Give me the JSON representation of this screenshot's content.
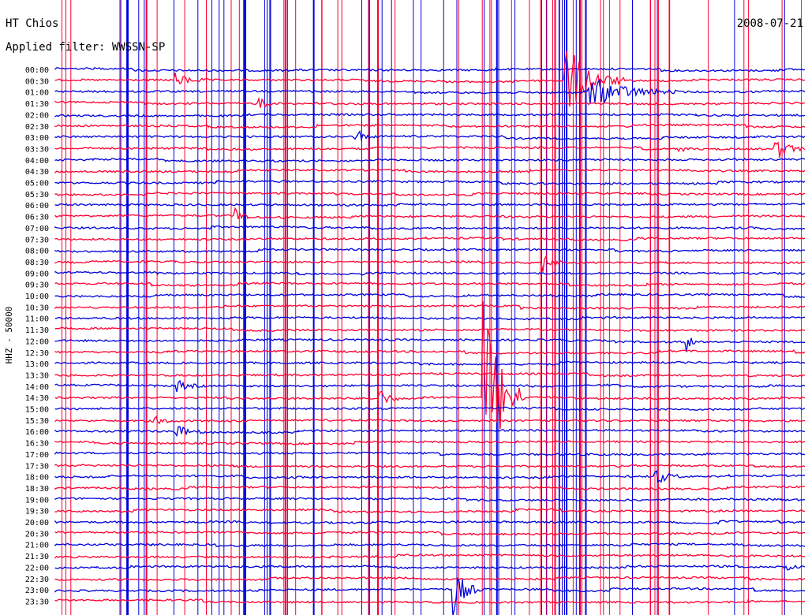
{
  "header": {
    "station": "HT Chios",
    "date": "2008-07-21",
    "filter": "Applied filter: WWSSN-SP"
  },
  "chart_data": {
    "type": "helicorder",
    "ylabel": "HHZ - 50000",
    "row_labels": [
      "00:00",
      "00:30",
      "01:00",
      "01:30",
      "02:00",
      "02:30",
      "03:00",
      "03:30",
      "04:00",
      "04:30",
      "05:00",
      "05:30",
      "06:00",
      "06:30",
      "07:00",
      "07:30",
      "08:00",
      "08:30",
      "09:00",
      "09:30",
      "10:00",
      "10:30",
      "11:00",
      "11:30",
      "12:00",
      "12:30",
      "13:00",
      "13:30",
      "14:00",
      "14:30",
      "15:00",
      "15:30",
      "16:00",
      "16:30",
      "17:00",
      "17:30",
      "18:00",
      "18:30",
      "19:00",
      "19:30",
      "20:00",
      "20:30",
      "21:00",
      "21:30",
      "22:00",
      "22:30",
      "23:00",
      "23:30"
    ],
    "colors": [
      "#0000dd",
      "#ff0033"
    ],
    "grid": false,
    "events": [
      {
        "row": 1,
        "x": 0.16,
        "amp": 0.6,
        "dur": 0.05
      },
      {
        "row": 1,
        "x": 0.68,
        "amp": 3.5,
        "dur": 0.08
      },
      {
        "row": 2,
        "x": 0.71,
        "amp": 1.5,
        "dur": 0.12
      },
      {
        "row": 3,
        "x": 0.27,
        "amp": 1.2,
        "dur": 0.02
      },
      {
        "row": 6,
        "x": 0.4,
        "amp": 0.8,
        "dur": 0.03
      },
      {
        "row": 7,
        "x": 0.83,
        "amp": 0.4,
        "dur": 0.02
      },
      {
        "row": 7,
        "x": 0.96,
        "amp": 1.2,
        "dur": 0.04
      },
      {
        "row": 13,
        "x": 0.24,
        "amp": 0.6,
        "dur": 0.02
      },
      {
        "row": 17,
        "x": 0.65,
        "amp": 0.9,
        "dur": 0.03
      },
      {
        "row": 24,
        "x": 0.84,
        "amp": 1.2,
        "dur": 0.02
      },
      {
        "row": 29,
        "x": 0.43,
        "amp": 1.2,
        "dur": 0.03
      },
      {
        "row": 29,
        "x": 0.57,
        "amp": 9.5,
        "dur": 0.06
      },
      {
        "row": 28,
        "x": 0.16,
        "amp": 0.6,
        "dur": 0.04
      },
      {
        "row": 31,
        "x": 0.13,
        "amp": 0.4,
        "dur": 0.04
      },
      {
        "row": 32,
        "x": 0.16,
        "amp": 0.8,
        "dur": 0.03
      },
      {
        "row": 36,
        "x": 0.8,
        "amp": 0.8,
        "dur": 0.04
      },
      {
        "row": 44,
        "x": 0.97,
        "amp": 0.7,
        "dur": 0.03
      },
      {
        "row": 46,
        "x": 0.53,
        "amp": 2.4,
        "dur": 0.04
      }
    ]
  }
}
